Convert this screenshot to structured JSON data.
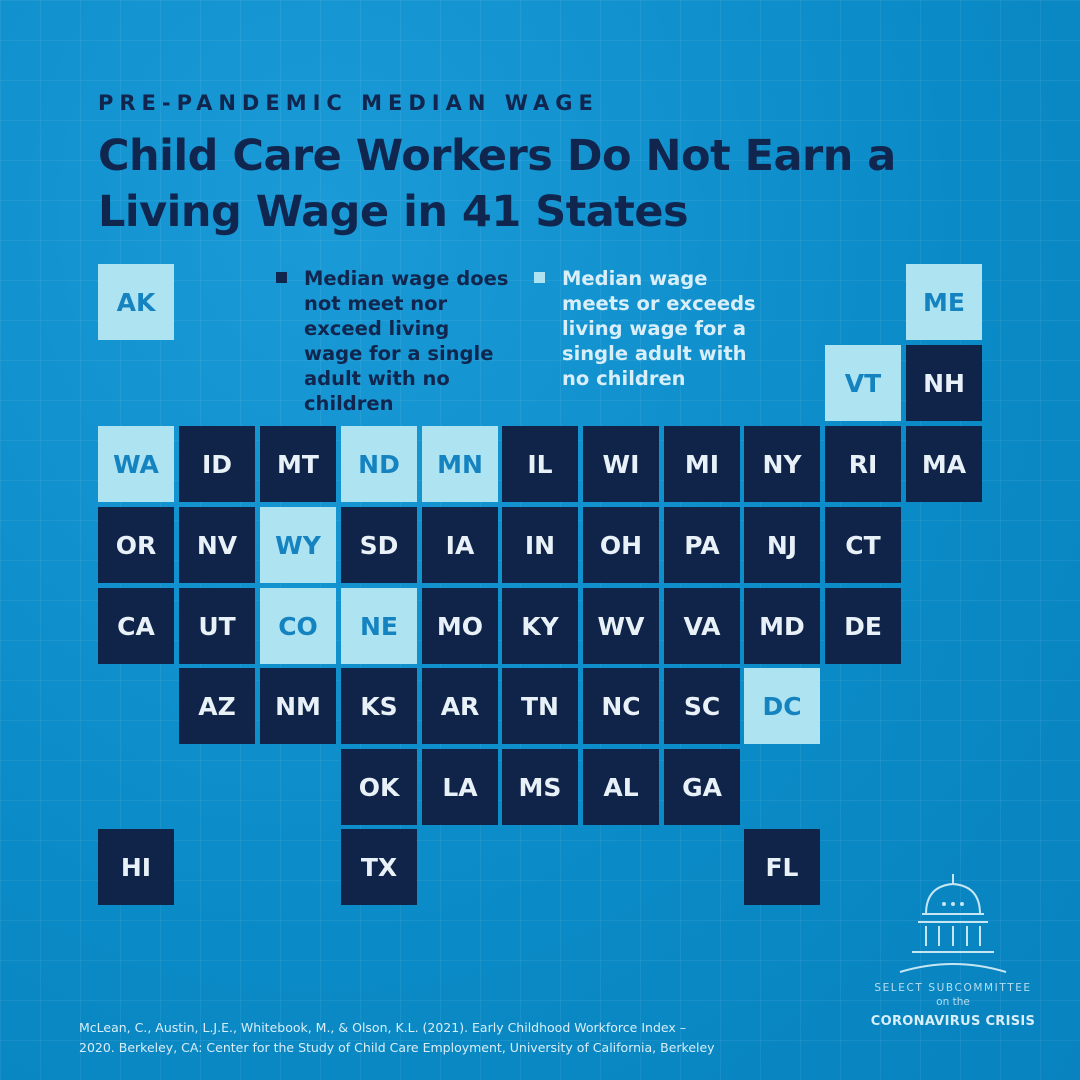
{
  "header": {
    "subtitle": "PRE-PANDEMIC MEDIAN WAGE",
    "title": "Child Care Workers Do Not Earn a Living Wage in 41 States"
  },
  "legend": {
    "no": "Median wage does not meet nor exceed living wage for a single adult with no children",
    "yes": "Median wage meets or exceeds living wage for a single adult with no children"
  },
  "colors": {
    "no": "#0f2448",
    "yes": "#aee3f2",
    "background": "#0c8fcc"
  },
  "states": [
    {
      "abbr": "AK",
      "meets_living_wage": true
    },
    {
      "abbr": "ME",
      "meets_living_wage": true
    },
    {
      "abbr": "VT",
      "meets_living_wage": true
    },
    {
      "abbr": "NH",
      "meets_living_wage": false
    },
    {
      "abbr": "WA",
      "meets_living_wage": true
    },
    {
      "abbr": "ID",
      "meets_living_wage": false
    },
    {
      "abbr": "MT",
      "meets_living_wage": false
    },
    {
      "abbr": "ND",
      "meets_living_wage": true
    },
    {
      "abbr": "MN",
      "meets_living_wage": true
    },
    {
      "abbr": "IL",
      "meets_living_wage": false
    },
    {
      "abbr": "WI",
      "meets_living_wage": false
    },
    {
      "abbr": "MI",
      "meets_living_wage": false
    },
    {
      "abbr": "NY",
      "meets_living_wage": false
    },
    {
      "abbr": "RI",
      "meets_living_wage": false
    },
    {
      "abbr": "MA",
      "meets_living_wage": false
    },
    {
      "abbr": "OR",
      "meets_living_wage": false
    },
    {
      "abbr": "NV",
      "meets_living_wage": false
    },
    {
      "abbr": "WY",
      "meets_living_wage": true
    },
    {
      "abbr": "SD",
      "meets_living_wage": false
    },
    {
      "abbr": "IA",
      "meets_living_wage": false
    },
    {
      "abbr": "IN",
      "meets_living_wage": false
    },
    {
      "abbr": "OH",
      "meets_living_wage": false
    },
    {
      "abbr": "PA",
      "meets_living_wage": false
    },
    {
      "abbr": "NJ",
      "meets_living_wage": false
    },
    {
      "abbr": "CT",
      "meets_living_wage": false
    },
    {
      "abbr": "CA",
      "meets_living_wage": false
    },
    {
      "abbr": "UT",
      "meets_living_wage": false
    },
    {
      "abbr": "CO",
      "meets_living_wage": true
    },
    {
      "abbr": "NE",
      "meets_living_wage": true
    },
    {
      "abbr": "MO",
      "meets_living_wage": false
    },
    {
      "abbr": "KY",
      "meets_living_wage": false
    },
    {
      "abbr": "WV",
      "meets_living_wage": false
    },
    {
      "abbr": "VA",
      "meets_living_wage": false
    },
    {
      "abbr": "MD",
      "meets_living_wage": false
    },
    {
      "abbr": "DE",
      "meets_living_wage": false
    },
    {
      "abbr": "AZ",
      "meets_living_wage": false
    },
    {
      "abbr": "NM",
      "meets_living_wage": false
    },
    {
      "abbr": "KS",
      "meets_living_wage": false
    },
    {
      "abbr": "AR",
      "meets_living_wage": false
    },
    {
      "abbr": "TN",
      "meets_living_wage": false
    },
    {
      "abbr": "NC",
      "meets_living_wage": false
    },
    {
      "abbr": "SC",
      "meets_living_wage": false
    },
    {
      "abbr": "DC",
      "meets_living_wage": true
    },
    {
      "abbr": "OK",
      "meets_living_wage": false
    },
    {
      "abbr": "LA",
      "meets_living_wage": false
    },
    {
      "abbr": "MS",
      "meets_living_wage": false
    },
    {
      "abbr": "AL",
      "meets_living_wage": false
    },
    {
      "abbr": "GA",
      "meets_living_wage": false
    },
    {
      "abbr": "HI",
      "meets_living_wage": false
    },
    {
      "abbr": "TX",
      "meets_living_wage": false
    },
    {
      "abbr": "FL",
      "meets_living_wage": false
    }
  ],
  "logo": {
    "line1": "SELECT SUBCOMMITTEE",
    "line2": "on the",
    "line3": "CORONAVIRUS CRISIS",
    "icon": "capitol-dome-icon"
  },
  "source": "McLean, C., Austin, L.J.E., Whitebook, M., & Olson, K.L. (2021). Early Childhood Workforce Index – 2020. Berkeley, CA: Center for the Study of Child Care Employment, University of California, Berkeley"
}
